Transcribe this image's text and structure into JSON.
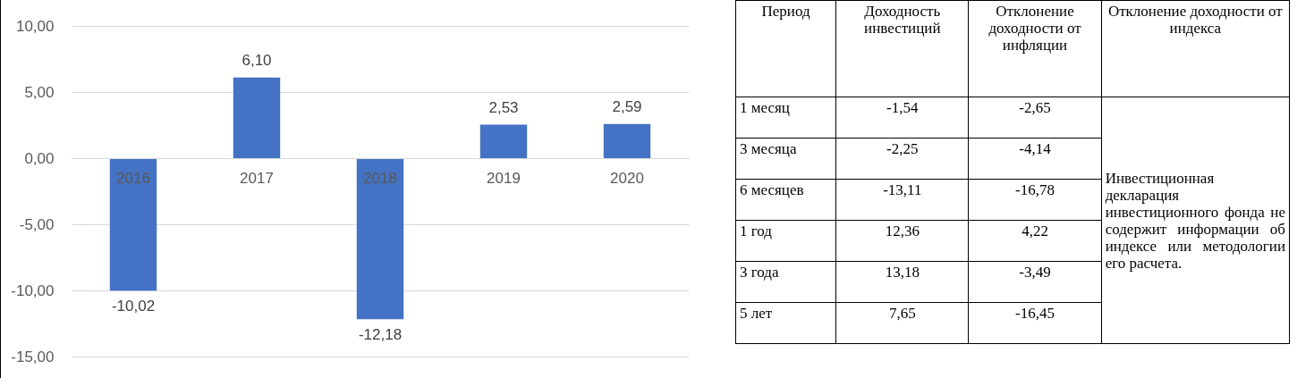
{
  "chart_data": [
    {
      "type": "bar",
      "categories": [
        "2016",
        "2017",
        "2018",
        "2019",
        "2020"
      ],
      "values": [
        -10.02,
        6.1,
        -12.18,
        2.53,
        2.59
      ],
      "value_labels": [
        "-10,02",
        "6,10",
        "-12,18",
        "2,53",
        "2,59"
      ],
      "color": "#4472c4",
      "ylim": [
        -15,
        10
      ],
      "yticks": [
        {
          "value": -15,
          "label": "-15,00"
        },
        {
          "value": -10,
          "label": "-10,00"
        },
        {
          "value": -5,
          "label": "-5,00"
        },
        {
          "value": 0,
          "label": "0,00"
        },
        {
          "value": 5,
          "label": "5,00"
        },
        {
          "value": 10,
          "label": "10,00"
        }
      ],
      "grid": "y"
    },
    {
      "type": "other",
      "annotations": [
        "Период",
        "Доходность инвестиций",
        "Отклонение доходности от инфляции",
        "Отклонение доходности от индекса",
        "1 месяц",
        "-1,54",
        "-2,65",
        "3 месяца",
        "-2,25",
        "-4,14",
        "6 месяцев",
        "-13,11",
        "-16,78",
        "1 год",
        "12,36",
        "4,22",
        "3 года",
        "13,18",
        "-3,49",
        "5 лет",
        "7,65",
        "-16,45",
        "Инвестиционная декларация инвестиционного фонда не содержит информации об индексе или методологии его расчета."
      ]
    }
  ]
}
